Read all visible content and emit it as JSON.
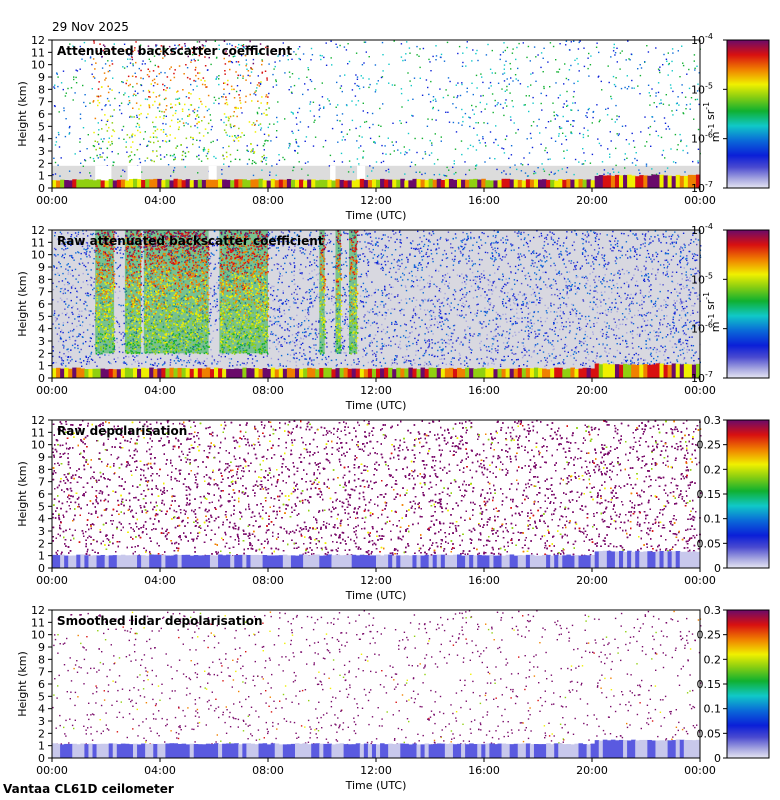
{
  "header": {
    "date": "29 Nov 2025"
  },
  "footer": {
    "site_instrument": "Vantaa CL61D ceilometer"
  },
  "chart_data": [
    {
      "type": "heatmap",
      "title": "Attenuated backscatter coefficient",
      "xlabel": "Time (UTC)",
      "ylabel": "Height (km)",
      "xticks": [
        "00:00",
        "04:00",
        "08:00",
        "12:00",
        "16:00",
        "20:00",
        "00:00"
      ],
      "xlim_hours": [
        0,
        24
      ],
      "ylim": [
        0,
        12
      ],
      "yticks": [
        0,
        1,
        2,
        3,
        4,
        5,
        6,
        7,
        8,
        9,
        10,
        11,
        12
      ],
      "colorbar": {
        "scale": "log",
        "range": [
          1e-07,
          0.0001
        ],
        "ticks": [
          {
            "value": 0.0001,
            "label": "10",
            "exp": "-4"
          },
          {
            "value": 1e-05,
            "label": "10",
            "exp": "-5"
          },
          {
            "value": 1e-06,
            "label": "10",
            "exp": "-6"
          },
          {
            "value": 1e-07,
            "label": "10",
            "exp": "-7"
          }
        ],
        "unit_parts": [
          {
            "base": "m",
            "exp": "-1"
          },
          {
            "base": " sr",
            "exp": "-1"
          }
        ]
      },
      "features": [
        {
          "kind": "noise_bands",
          "level_bands": [
            [
              1.5,
              2.3
            ],
            [
              2.7,
              3.3
            ],
            [
              3.5,
              5.8
            ],
            [
              6.3,
              8.0
            ]
          ],
          "height_range_km": [
            2,
            12
          ],
          "level": 0.85
        },
        {
          "kind": "gap_bands",
          "hour_ranges": [
            [
              1.6,
              2.2
            ],
            [
              2.8,
              3.3
            ],
            [
              5.8,
              6.1
            ],
            [
              10.3,
              10.5
            ],
            [
              11.3,
              11.6
            ]
          ],
          "height_range_km": [
            0,
            1.8
          ]
        },
        {
          "kind": "boundary_layer",
          "height_km": [
            0,
            0.6
          ],
          "hour_range": [
            0,
            24
          ]
        }
      ]
    },
    {
      "type": "heatmap",
      "title": "Raw attenuated backscatter coefficient",
      "xlabel": "Time (UTC)",
      "ylabel": "Height (km)",
      "xticks": [
        "00:00",
        "04:00",
        "08:00",
        "12:00",
        "16:00",
        "20:00",
        "00:00"
      ],
      "xlim_hours": [
        0,
        24
      ],
      "ylim": [
        0,
        12
      ],
      "yticks": [
        0,
        1,
        2,
        3,
        4,
        5,
        6,
        7,
        8,
        9,
        10,
        11,
        12
      ],
      "colorbar": {
        "scale": "log",
        "range": [
          1e-07,
          0.0001
        ],
        "ticks": [
          {
            "value": 0.0001,
            "label": "10",
            "exp": "-4"
          },
          {
            "value": 1e-05,
            "label": "10",
            "exp": "-5"
          },
          {
            "value": 1e-06,
            "label": "10",
            "exp": "-6"
          },
          {
            "value": 1e-07,
            "label": "10",
            "exp": "-7"
          }
        ],
        "unit_parts": [
          {
            "base": "m",
            "exp": "-1"
          },
          {
            "base": " sr",
            "exp": "-1"
          }
        ]
      },
      "features": [
        {
          "kind": "dense_bands",
          "hour_ranges": [
            [
              1.6,
              2.3
            ],
            [
              2.7,
              3.3
            ],
            [
              3.4,
              5.8
            ],
            [
              6.2,
              8.0
            ],
            [
              9.9,
              10.1
            ],
            [
              10.5,
              10.7
            ],
            [
              11.0,
              11.3
            ]
          ],
          "height_range_km": [
            2,
            12
          ]
        },
        {
          "kind": "boundary_layer",
          "height_km": [
            0,
            0.7
          ],
          "hour_range": [
            0,
            24
          ]
        }
      ]
    },
    {
      "type": "heatmap",
      "title": "Raw depolarisation",
      "xlabel": "Time (UTC)",
      "ylabel": "Height (km)",
      "xticks": [
        "00:00",
        "04:00",
        "08:00",
        "12:00",
        "16:00",
        "20:00",
        "00:00"
      ],
      "xlim_hours": [
        0,
        24
      ],
      "ylim": [
        0,
        12
      ],
      "yticks": [
        0,
        1,
        2,
        3,
        4,
        5,
        6,
        7,
        8,
        9,
        10,
        11,
        12
      ],
      "colorbar": {
        "scale": "linear",
        "range": [
          0,
          0.3
        ],
        "ticks": [
          {
            "value": 0.3,
            "label": "0.3"
          },
          {
            "value": 0.25,
            "label": "0.25"
          },
          {
            "value": 0.2,
            "label": "0.2"
          },
          {
            "value": 0.15,
            "label": "0.15"
          },
          {
            "value": 0.1,
            "label": "0.1"
          },
          {
            "value": 0.05,
            "label": "0.05"
          },
          {
            "value": 0,
            "label": "0"
          }
        ],
        "unit_parts": []
      },
      "features": [
        {
          "kind": "speckle_fill",
          "height_range_km": [
            1,
            12
          ]
        },
        {
          "kind": "low_depol_layer",
          "height_km": [
            0,
            1
          ],
          "hour_range": [
            0,
            24
          ]
        }
      ]
    },
    {
      "type": "heatmap",
      "title": "Smoothed lidar depolarisation",
      "xlabel": "Time (UTC)",
      "ylabel": "Height (km)",
      "xticks": [
        "00:00",
        "04:00",
        "08:00",
        "12:00",
        "16:00",
        "20:00",
        "00:00"
      ],
      "xlim_hours": [
        0,
        24
      ],
      "ylim": [
        0,
        12
      ],
      "yticks": [
        0,
        1,
        2,
        3,
        4,
        5,
        6,
        7,
        8,
        9,
        10,
        11,
        12
      ],
      "colorbar": {
        "scale": "linear",
        "range": [
          0,
          0.3
        ],
        "ticks": [
          {
            "value": 0.3,
            "label": "0.3"
          },
          {
            "value": 0.25,
            "label": "0.25"
          },
          {
            "value": 0.2,
            "label": "0.2"
          },
          {
            "value": 0.15,
            "label": "0.15"
          },
          {
            "value": 0.1,
            "label": "0.1"
          },
          {
            "value": 0.05,
            "label": "0.05"
          },
          {
            "value": 0,
            "label": "0"
          }
        ],
        "unit_parts": []
      },
      "features": [
        {
          "kind": "sparse_dots",
          "height_range_km": [
            1,
            12
          ]
        },
        {
          "kind": "low_depol_layer",
          "height_km": [
            0,
            1.1
          ],
          "hour_range": [
            0,
            24
          ]
        }
      ]
    }
  ]
}
